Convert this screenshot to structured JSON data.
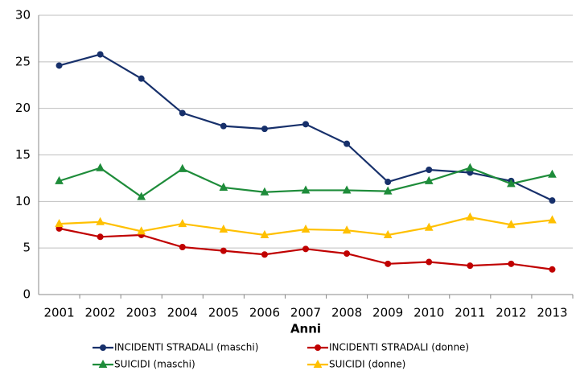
{
  "chart_data": {
    "type": "line",
    "x_label": "Anni",
    "categories": [
      "2001",
      "2002",
      "2003",
      "2004",
      "2005",
      "2006",
      "2007",
      "2008",
      "2009",
      "2010",
      "2011",
      "2012",
      "2013"
    ],
    "series": [
      {
        "name": "INCIDENTI STRADALI (maschi)",
        "color": "#17306b",
        "marker": "circle",
        "values": [
          24.6,
          25.8,
          23.2,
          19.5,
          18.1,
          17.8,
          18.3,
          16.2,
          12.1,
          13.4,
          13.1,
          12.2,
          10.1
        ]
      },
      {
        "name": "INCIDENTI STRADALI (donne)",
        "color": "#c00000",
        "marker": "circle",
        "values": [
          7.1,
          6.2,
          6.4,
          5.1,
          4.7,
          4.3,
          4.9,
          4.4,
          3.3,
          3.5,
          3.1,
          3.3,
          2.7
        ]
      },
      {
        "name": "SUICIDI (maschi)",
        "color": "#1e8c3a",
        "marker": "triangle",
        "values": [
          12.2,
          13.6,
          10.5,
          13.5,
          11.5,
          11.0,
          11.2,
          11.2,
          11.1,
          12.2,
          13.6,
          11.9,
          12.9
        ]
      },
      {
        "name": "SUICIDI (donne)",
        "color": "#ffc000",
        "marker": "triangle",
        "values": [
          7.6,
          7.8,
          6.8,
          7.6,
          7.0,
          6.4,
          7.0,
          6.9,
          6.4,
          7.2,
          8.3,
          7.5,
          8.0
        ]
      }
    ],
    "ylim": [
      0,
      30
    ],
    "yticks": [
      0,
      5,
      10,
      15,
      20,
      25,
      30
    ],
    "grid": true,
    "legend": "bottom"
  }
}
